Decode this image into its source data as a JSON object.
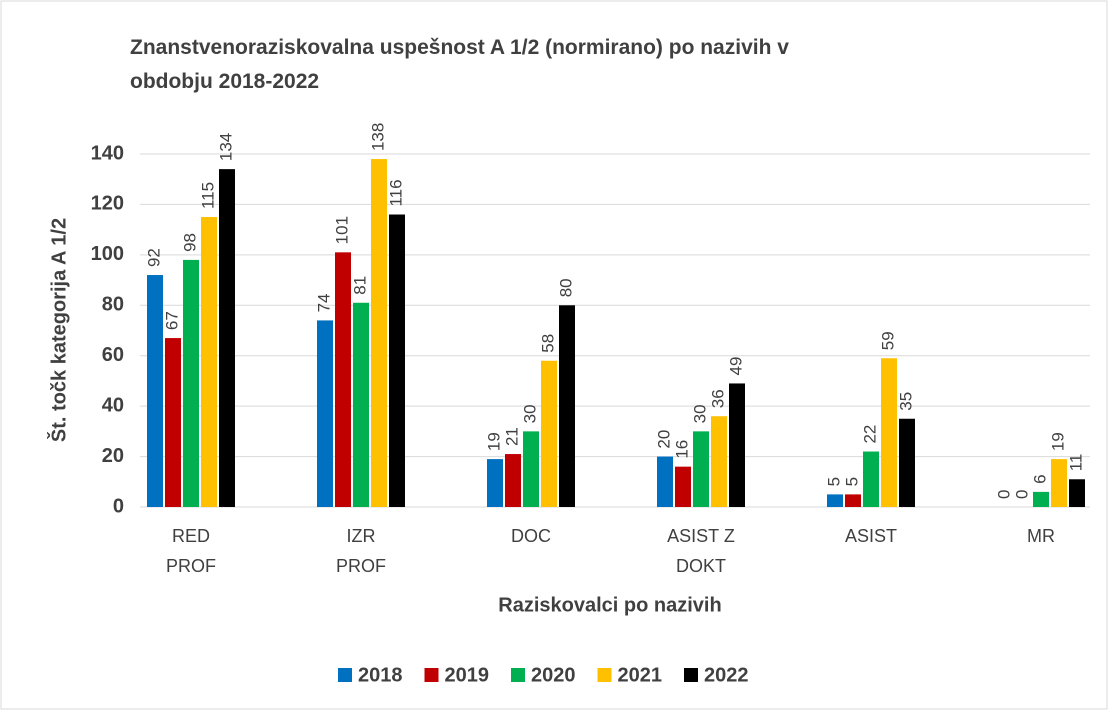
{
  "chart_data": {
    "type": "bar",
    "title": "Znanstvenoraziskovalna uspešnost  A 1/2 (normirano) po nazivih v obdobju 2018-2022",
    "x_label": "Raziskovalci po nazivih",
    "y_label": "Št. točk kategorija  A 1/2",
    "categories": [
      "RED PROF",
      "IZR PROF",
      "DOC",
      "ASIST Z DOKT",
      "ASIST",
      "MR"
    ],
    "series": [
      {
        "name": "2018",
        "color": "#0070c0",
        "values": [
          92,
          74,
          19,
          20,
          5,
          0
        ]
      },
      {
        "name": "2019",
        "color": "#c00000",
        "values": [
          67,
          101,
          21,
          16,
          5,
          0
        ]
      },
      {
        "name": "2020",
        "color": "#00b050",
        "values": [
          98,
          81,
          30,
          30,
          22,
          6
        ]
      },
      {
        "name": "2021",
        "color": "#ffc000",
        "values": [
          115,
          138,
          58,
          36,
          59,
          19
        ]
      },
      {
        "name": "2022",
        "color": "#000000",
        "values": [
          134,
          116,
          80,
          49,
          35,
          11
        ]
      }
    ],
    "ylim": [
      0,
      140
    ],
    "yticks": [
      0,
      20,
      40,
      60,
      80,
      100,
      120,
      140
    ],
    "grid": true,
    "legend": "bottom"
  }
}
